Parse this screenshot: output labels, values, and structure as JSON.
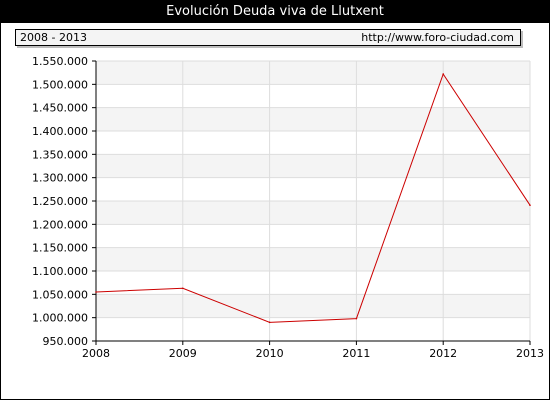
{
  "title": "Evolución Deuda viva de Llutxent",
  "info": {
    "period": "2008 - 2013",
    "url": "http://www.foro-ciudad.com"
  },
  "colors": {
    "line": "#cc0000",
    "band": "#f4f4f4",
    "grid": "#dddddd"
  },
  "chart_data": {
    "type": "line",
    "x": [
      "2008",
      "2009",
      "2010",
      "2011",
      "2012",
      "2013"
    ],
    "y": [
      1055000,
      1063000,
      990000,
      998000,
      1522000,
      1241000
    ],
    "ylim": [
      950000,
      1550000
    ],
    "yticks": [
      950000,
      1000000,
      1050000,
      1100000,
      1150000,
      1200000,
      1250000,
      1300000,
      1350000,
      1400000,
      1450000,
      1500000,
      1550000
    ],
    "ytick_labels": [
      "950.000",
      "1.000.000",
      "1.050.000",
      "1.100.000",
      "1.150.000",
      "1.200.000",
      "1.250.000",
      "1.300.000",
      "1.350.000",
      "1.400.000",
      "1.450.000",
      "1.500.000",
      "1.550.000"
    ],
    "grid": true,
    "legend": "none"
  }
}
